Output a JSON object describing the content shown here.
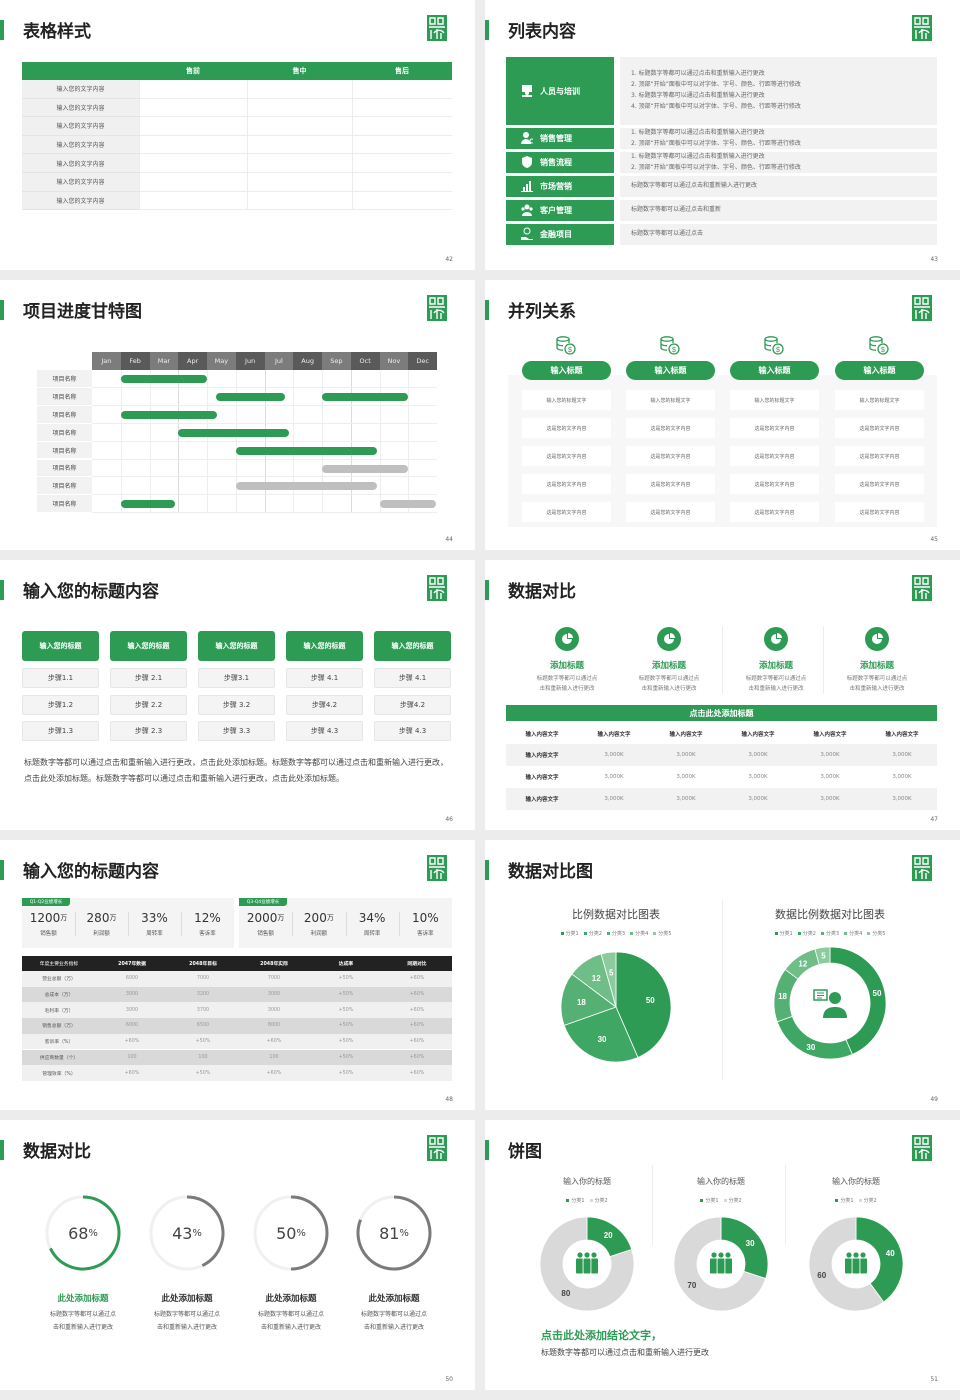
{
  "colors": {
    "accent": "#2e9b55",
    "gray": "#7a7a7a",
    "track": "#f0f0f0",
    "light": "#f2f2f2",
    "pie": [
      "#2e9b55",
      "#3fa764",
      "#55b074",
      "#6fbd87",
      "#8ccb9e"
    ],
    "donut_gray": "#d9d9d9"
  },
  "s42": {
    "title": "表格样式",
    "page": "42",
    "headers": [
      "",
      "售前",
      "售中",
      "售后"
    ],
    "rows": [
      "输入您的文字内容",
      "输入您的文字内容",
      "输入您的文字内容",
      "输入您的文字内容",
      "输入您的文字内容",
      "输入您的文字内容",
      "输入您的文字内容"
    ]
  },
  "s43": {
    "title": "列表内容",
    "page": "43",
    "items": [
      {
        "label": "人员与培训",
        "icon": "training-icon",
        "lines": [
          "1.   标题数字等都可以通过点击和重新输入进行更改",
          "2.   顶部“开始”面板中可以对字体、字号、颜色、行距等进行修改",
          "3.   标题数字等都可以通过点击和重新输入进行更改",
          "4.   顶部“开始”面板中可以对字体、字号、颜色、行距等进行修改"
        ]
      },
      {
        "label": "销售管理",
        "icon": "user-gear-icon",
        "lines": [
          "1.   标题数字等都可以通过点击和重新输入进行更改",
          "2.   顶部“开始”面板中可以对字体、字号、颜色、行距等进行修改"
        ]
      },
      {
        "label": "销售流程",
        "icon": "shield-icon",
        "lines": [
          "1.   标题数字等都可以通过点击和重新输入进行更改",
          "2.   顶部“开始”面板中可以对字体、字号、颜色、行距等进行修改"
        ]
      },
      {
        "label": "市场营销",
        "icon": "bar-chart-icon",
        "lines": [
          "标题数字等都可以通过点击和重新输入进行更改"
        ]
      },
      {
        "label": "客户管理",
        "icon": "users-icon",
        "lines": [
          "标题数字等都可以通过点击和重新"
        ]
      },
      {
        "label": "金融项目",
        "icon": "money-hand-icon",
        "lines": [
          "标题数字等都可以通过点击"
        ]
      }
    ]
  },
  "s44": {
    "title": "项目进度甘特图",
    "page": "44",
    "months": [
      "Jan",
      "Feb",
      "Mar",
      "Apr",
      "May",
      "Jun",
      "Jul",
      "Aug",
      "Sep",
      "Oct",
      "Nov",
      "Dec"
    ],
    "rows": [
      {
        "label": "项目名称",
        "bars": [
          {
            "start": 1,
            "end": 4,
            "status": "active"
          }
        ]
      },
      {
        "label": "项目名称",
        "bars": [
          {
            "start": 4.3,
            "end": 6.7,
            "status": "active"
          },
          {
            "start": 8,
            "end": 11,
            "status": "active"
          }
        ]
      },
      {
        "label": "项目名称",
        "bars": [
          {
            "start": 1,
            "end": 4.35,
            "status": "active"
          }
        ]
      },
      {
        "label": "项目名称",
        "bars": [
          {
            "start": 3,
            "end": 6.85,
            "status": "active"
          }
        ]
      },
      {
        "label": "项目名称",
        "bars": [
          {
            "start": 5,
            "end": 9.9,
            "status": "active"
          }
        ]
      },
      {
        "label": "项目名称",
        "bars": [
          {
            "start": 8,
            "end": 11,
            "status": "pending"
          }
        ]
      },
      {
        "label": "项目名称",
        "bars": [
          {
            "start": 5,
            "end": 9.9,
            "status": "pending"
          }
        ]
      },
      {
        "label": "项目名称",
        "bars": [
          {
            "start": 1,
            "end": 2.9,
            "status": "active"
          },
          {
            "start": 10,
            "end": 11.95,
            "status": "pending"
          }
        ]
      }
    ]
  },
  "s45": {
    "title": "并列关系",
    "page": "45",
    "columns": [
      {
        "header": "输入标题",
        "cells": [
          "输入您的标题文字",
          "这是您的文字内容",
          "这是您的文字内容",
          "这是您的文字内容",
          "这是您的文字内容"
        ]
      },
      {
        "header": "输入标题",
        "cells": [
          "输入您的标题文字",
          "这是您的文字内容",
          "这是您的文字内容",
          "这是您的文字内容",
          "这是您的文字内容"
        ]
      },
      {
        "header": "输入标题",
        "cells": [
          "输入您的标题文字",
          "这是您的文字内容",
          "这是您的文字内容",
          "这是您的文字内容",
          "这是您的文字内容"
        ]
      },
      {
        "header": "输入标题",
        "cells": [
          "输入您的标题文字",
          "这是您的文字内容",
          "这是您的文字内容",
          "这是您的文字内容",
          "这是您的文字内容"
        ]
      }
    ]
  },
  "s46": {
    "title": "输入您的标题内容",
    "page": "46",
    "columns": [
      {
        "header": "输入您的标题",
        "steps": [
          "步骤1.1",
          "步骤1.2",
          "步骤1.3"
        ]
      },
      {
        "header": "输入您的标题",
        "steps": [
          "步骤 2.1",
          "步骤 2.2",
          "步骤 2.3"
        ]
      },
      {
        "header": "输入您的标题",
        "steps": [
          "步骤3.1",
          "步骤 3.2",
          "步骤 3.3"
        ]
      },
      {
        "header": "输入您的标题",
        "steps": [
          "步骤 4.1",
          "步骤4.2",
          "步骤 4.3"
        ]
      },
      {
        "header": "输入您的标题",
        "steps": [
          "步骤 4.1",
          "步骤4.2",
          "步骤 4.3"
        ]
      }
    ],
    "paragraph": "标题数字等都可以通过点击和重新输入进行更改，点击此处添加标题。标题数字等都可以通过点击和重新输入进行更改，点击此处添加标题。标题数字等都可以通过点击和重新输入进行更改，点击此处添加标题。"
  },
  "s47": {
    "title": "数据对比",
    "page": "47",
    "items": [
      {
        "title": "添加标题",
        "desc": [
          "标题数字等都可以通过点",
          "击和重新输入进行更改"
        ]
      },
      {
        "title": "添加标题",
        "desc": [
          "标题数字等都可以通过点",
          "击和重新输入进行更改"
        ]
      },
      {
        "title": "添加标题",
        "desc": [
          "标题数字等都可以通过点",
          "击和重新输入进行更改"
        ]
      },
      {
        "title": "添加标题",
        "desc": [
          "标题数字等都可以通过点",
          "击和重新输入进行更改"
        ]
      }
    ],
    "banner": "点击此处添加标题",
    "headers": [
      "输入内容文字",
      "输入内容文字",
      "输入内容文字",
      "输入内容文字",
      "输入内容文字",
      "输入内容文字"
    ],
    "rows": [
      [
        "输入内容文字",
        "3,000K",
        "3,000K",
        "3,000K",
        "3,000K",
        "3,000K"
      ],
      [
        "输入内容文字",
        "3,000K",
        "3,000K",
        "3,000K",
        "3,000K",
        "3,000K"
      ],
      [
        "输入内容文字",
        "3,000K",
        "3,000K",
        "3,000K",
        "3,000K",
        "3,000K"
      ]
    ]
  },
  "s48": {
    "title": "输入您的标题内容",
    "page": "48",
    "panels": [
      {
        "tag": "Q1-Q2业绩增长",
        "stats": [
          {
            "value": "1200",
            "unit": "万",
            "label": "销售额"
          },
          {
            "value": "280",
            "unit": "万",
            "label": "利润额"
          },
          {
            "value": "33%",
            "unit": "",
            "label": "周转率"
          },
          {
            "value": "12%",
            "unit": "",
            "label": "客诉率"
          }
        ]
      },
      {
        "tag": "Q3-Q4业绩增长",
        "stats": [
          {
            "value": "2000",
            "unit": "万",
            "label": "销售额"
          },
          {
            "value": "200",
            "unit": "万",
            "label": "利润额"
          },
          {
            "value": "34%",
            "unit": "",
            "label": "周转率"
          },
          {
            "value": "10%",
            "unit": "",
            "label": "客诉率"
          }
        ]
      }
    ],
    "headers": [
      "年度主要业务指标",
      "2047年数据",
      "2048年目标",
      "2048年实际",
      "达成率",
      "同期对比"
    ],
    "rows": [
      [
        "营业总额（万）",
        "6000",
        "7000",
        "7000",
        "+50%",
        "+60%"
      ],
      [
        "总成本（万）",
        "3000",
        "3200",
        "3000",
        "+50%",
        "+60%"
      ],
      [
        "毛利率（万）",
        "3000",
        "3700",
        "3000",
        "+50%",
        "+60%"
      ],
      [
        "销售总额（万）",
        "6000",
        "6500",
        "8000",
        "+50%",
        "+60%"
      ],
      [
        "客诉率（%）",
        "+60%",
        "+50%",
        "+60%",
        "+50%",
        "+60%"
      ],
      [
        "供应商数量（个）",
        "100",
        "100",
        "100",
        "+50%",
        "+60%"
      ],
      [
        "管理效率（%）",
        "+60%",
        "+50%",
        "+60%",
        "+50%",
        "+60%"
      ]
    ]
  },
  "s49": {
    "title": "数据对比图",
    "page": "49",
    "chart_data": [
      {
        "type": "pie",
        "title": "比例数据对比图表",
        "categories": [
          "分类1",
          "分类2",
          "分类3",
          "分类4",
          "分类5"
        ],
        "values": [
          50,
          30,
          18,
          12,
          5
        ],
        "legend": "top"
      },
      {
        "type": "donut",
        "title": "数据比例数据对比图表",
        "categories": [
          "分类1",
          "分类2",
          "分类3",
          "分类4",
          "分类5"
        ],
        "values": [
          50,
          30,
          18,
          12,
          5
        ],
        "legend": "top",
        "center_icon": "customer-service-icon"
      }
    ]
  },
  "s50": {
    "title": "数据对比",
    "page": "50",
    "rings": [
      {
        "value": 68,
        "unit": "%",
        "title": "此处添加标题",
        "desc": [
          "标题数字等都可以通过点",
          "击和重新输入进行更改"
        ],
        "color": "#2e9b55"
      },
      {
        "value": 43,
        "unit": "%",
        "title": "此处添加标题",
        "desc": [
          "标题数字等都可以通过点",
          "击和重新输入进行更改"
        ],
        "color": "#7a7a7a"
      },
      {
        "value": 50,
        "unit": "%",
        "title": "此处添加标题",
        "desc": [
          "标题数字等都可以通过点",
          "击和重新输入进行更改"
        ],
        "color": "#7a7a7a"
      },
      {
        "value": 81,
        "unit": "%",
        "title": "此处添加标题",
        "desc": [
          "标题数字等都可以通过点",
          "击和重新输入进行更改"
        ],
        "color": "#7a7a7a"
      }
    ]
  },
  "s51": {
    "title": "饼图",
    "page": "51",
    "chart_data": [
      {
        "type": "donut",
        "title": "输入你的标题",
        "categories": [
          "分类1",
          "分类2"
        ],
        "values": [
          20,
          80
        ],
        "legend": "top",
        "center_icon": "team-icon"
      },
      {
        "type": "donut",
        "title": "输入你的标题",
        "categories": [
          "分类1",
          "分类2"
        ],
        "values": [
          30,
          70
        ],
        "legend": "top",
        "center_icon": "team-icon"
      },
      {
        "type": "donut",
        "title": "输入你的标题",
        "categories": [
          "分类1",
          "分类2"
        ],
        "values": [
          40,
          60
        ],
        "legend": "top",
        "center_icon": "team-icon"
      }
    ],
    "conclusion": "点击此处添加结论文字，",
    "conclusion_desc": "标题数字等都可以通过点击和重新输入进行更改"
  }
}
